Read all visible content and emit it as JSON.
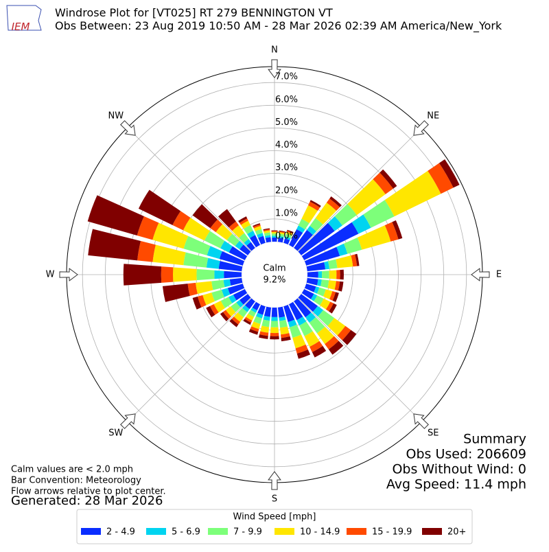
{
  "chart_data": {
    "type": "windrose",
    "logo": "IEM",
    "title": "Windrose Plot for [VT025] RT 279 BENNINGTON  VT",
    "subtitle": "Obs Between: 23 Aug 2019 10:50 AM - 28 Mar 2026 02:39 AM America/New_York",
    "compass_labels": [
      "N",
      "NE",
      "E",
      "SE",
      "S",
      "SW",
      "W",
      "NW"
    ],
    "calm_label": "Calm",
    "calm_value_label": "9.2%",
    "x": [
      0,
      10,
      20,
      30,
      40,
      50,
      60,
      70,
      80,
      90,
      100,
      110,
      120,
      130,
      140,
      150,
      160,
      170,
      180,
      190,
      200,
      210,
      220,
      230,
      240,
      250,
      260,
      270,
      280,
      290,
      300,
      310,
      320,
      330,
      340,
      350
    ],
    "rlim": [
      0,
      7.7
    ],
    "rticks": [
      {
        "value": 0,
        "label": "0.0%"
      },
      {
        "value": 1,
        "label": "1.0%"
      },
      {
        "value": 2,
        "label": "2.0%"
      },
      {
        "value": 3,
        "label": "3.0%"
      },
      {
        "value": 4,
        "label": "4.0%"
      },
      {
        "value": 5,
        "label": "5.0%"
      },
      {
        "value": 6,
        "label": "6.0%"
      },
      {
        "value": 7,
        "label": "7.0%"
      }
    ],
    "grid": true,
    "legend_title": "Wind Speed [mph]",
    "legend_position": "bottom",
    "series": [
      {
        "name": "2 - 4.9",
        "color": "#0a2dff",
        "values": [
          0.18,
          0.18,
          0.21,
          0.77,
          0.98,
          1.82,
          2.66,
          1.54,
          0.8,
          0.48,
          0.48,
          0.45,
          0.48,
          0.9,
          0.87,
          0.78,
          0.72,
          0.45,
          0.42,
          0.42,
          0.39,
          0.3,
          0.42,
          0.45,
          0.57,
          0.69,
          0.53,
          0.78,
          1.02,
          1.07,
          0.78,
          0.45,
          0.32,
          0.49,
          0.32,
          0.21
        ]
      },
      {
        "name": "5 - 6.9",
        "color": "#00d4f0",
        "values": [
          0.08,
          0.08,
          0.09,
          0.18,
          0.22,
          0.42,
          0.61,
          0.35,
          0.18,
          0.16,
          0.16,
          0.15,
          0.16,
          0.3,
          0.29,
          0.26,
          0.24,
          0.15,
          0.17,
          0.17,
          0.16,
          0.12,
          0.17,
          0.18,
          0.23,
          0.28,
          0.28,
          0.42,
          0.54,
          0.57,
          0.42,
          0.24,
          0.17,
          0.21,
          0.14,
          0.09
        ]
      },
      {
        "name": "7 - 9.9",
        "color": "#7dff7a",
        "values": [
          0.1,
          0.1,
          0.12,
          0.33,
          0.42,
          0.78,
          1.14,
          0.66,
          0.35,
          0.32,
          0.32,
          0.3,
          0.32,
          0.6,
          0.58,
          0.52,
          0.48,
          0.3,
          0.28,
          0.28,
          0.26,
          0.2,
          0.28,
          0.3,
          0.38,
          0.46,
          0.53,
          0.78,
          1.02,
          1.07,
          0.78,
          0.45,
          0.32,
          0.28,
          0.18,
          0.12
        ]
      },
      {
        "name": "10 - 14.9",
        "color": "#ffe600",
        "values": [
          0.07,
          0.07,
          0.09,
          0.66,
          0.84,
          1.56,
          2.28,
          1.32,
          0.69,
          0.32,
          0.32,
          0.3,
          0.32,
          0.6,
          0.58,
          0.52,
          0.48,
          0.3,
          0.25,
          0.25,
          0.23,
          0.18,
          0.25,
          0.27,
          0.34,
          0.41,
          0.7,
          1.04,
          1.36,
          1.42,
          1.04,
          0.6,
          0.42,
          0.21,
          0.14,
          0.09
        ]
      },
      {
        "name": "15 - 19.9",
        "color": "#ff4a00",
        "values": [
          0.04,
          0.04,
          0.05,
          0.18,
          0.22,
          0.42,
          0.61,
          0.35,
          0.18,
          0.16,
          0.16,
          0.15,
          0.16,
          0.3,
          0.29,
          0.26,
          0.24,
          0.15,
          0.14,
          0.14,
          0.13,
          0.1,
          0.14,
          0.15,
          0.19,
          0.23,
          0.35,
          0.52,
          0.68,
          0.71,
          0.52,
          0.3,
          0.21,
          0.11,
          0.07,
          0.05
        ]
      },
      {
        "name": "20+",
        "color": "#800000",
        "values": [
          0.03,
          0.03,
          0.04,
          0.08,
          0.12,
          0.2,
          0.3,
          0.18,
          0.1,
          0.16,
          0.16,
          0.15,
          0.16,
          0.3,
          0.29,
          0.26,
          0.24,
          0.15,
          0.14,
          0.14,
          0.13,
          0.1,
          0.14,
          0.15,
          0.19,
          0.23,
          1.11,
          1.66,
          2.18,
          2.26,
          1.66,
          0.96,
          0.67,
          0.1,
          0.05,
          0.04
        ]
      }
    ],
    "notes": [
      "Calm values are < 2.0 mph",
      "Bar Convention: Meteorology",
      "Flow arrows relative to plot center."
    ],
    "generated": "Generated: 28 Mar 2026",
    "summary": [
      "Summary",
      "Obs Used: 206609",
      "Obs Without Wind: 0",
      "Avg Speed: 11.4 mph"
    ]
  }
}
